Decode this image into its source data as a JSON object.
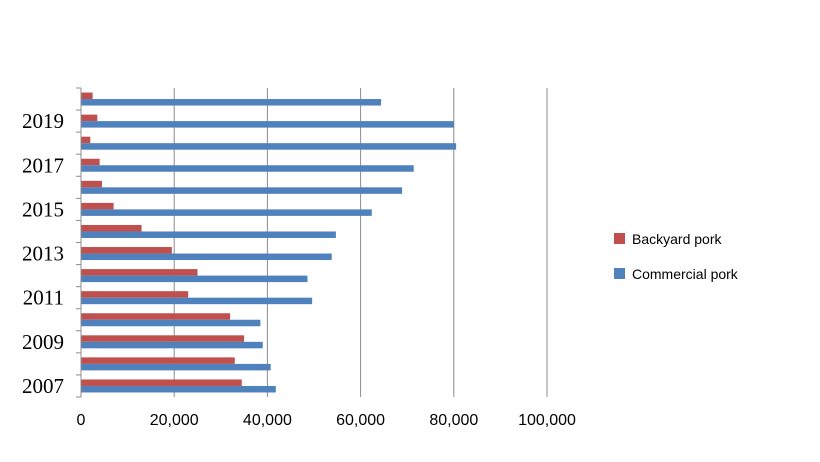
{
  "chart_data": {
    "type": "bar",
    "orientation": "horizontal",
    "categories": [
      "2007",
      "2008",
      "2009",
      "2010",
      "2011",
      "2012",
      "2013",
      "2014",
      "2015",
      "2016",
      "2017",
      "2018",
      "2019",
      "2020"
    ],
    "category_tick_labels": [
      "2007",
      "2009",
      "2011",
      "2013",
      "2015",
      "2017",
      "2019"
    ],
    "series": [
      {
        "name": "Backyard pork",
        "color": "#c0504d",
        "values": [
          34500,
          33000,
          35000,
          32000,
          23000,
          25000,
          19500,
          13000,
          7000,
          4500,
          4000,
          2000,
          3500,
          2500
        ]
      },
      {
        "name": "Commercial pork",
        "color": "#4f81bd",
        "values": [
          41800,
          40700,
          39000,
          38500,
          49600,
          48600,
          53800,
          54700,
          62400,
          68900,
          71400,
          80500,
          80000,
          64400
        ]
      }
    ],
    "xlim": [
      0,
      100000
    ],
    "x_ticks": [
      "0",
      "20,000",
      "40,000",
      "60,000",
      "80,000",
      "100,000"
    ],
    "grid": "vertical",
    "legend_position": "right"
  }
}
